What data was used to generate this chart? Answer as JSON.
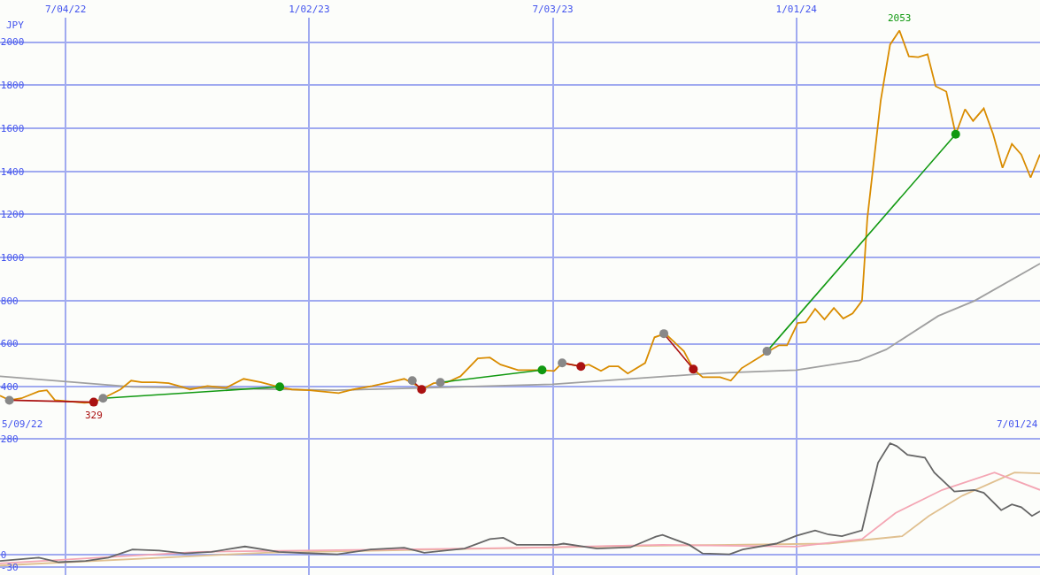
{
  "chart_data": [
    {
      "type": "line",
      "ylabel": "JPY",
      "ylim": [
        194,
        2115
      ],
      "yticks": [
        400,
        600,
        800,
        1000,
        1200,
        1400,
        1600,
        1800,
        2000
      ],
      "xlim": [
        "2022-05-16",
        "2024-07-01"
      ],
      "xticks": [
        {
          "value": "2022-07-04",
          "label": "7/04/22"
        },
        {
          "value": "2023-01-02",
          "label": "1/02/23"
        },
        {
          "value": "2023-07-03",
          "label": "7/03/23"
        },
        {
          "value": "2024-01-01",
          "label": "1/01/24"
        }
      ],
      "grid": true,
      "marker": "none",
      "line_style": "solid",
      "annotations": [
        {
          "text": "2053",
          "x": "2024-03-18",
          "y": 2053
        },
        {
          "text": "329",
          "x": "2022-07-25",
          "y": 329
        }
      ],
      "series": [
        {
          "color": "#a0a0a0",
          "x": [
            "2022-05-16",
            "2022-08-23",
            "2023-01-22",
            "2023-07-03",
            "2023-10-27",
            "2024-01-01",
            "2024-02-17",
            "2024-03-08",
            "2024-04-16",
            "2024-05-13",
            "2024-07-01"
          ],
          "values": [
            449,
            400,
            384,
            412,
            462,
            478,
            523,
            573,
            729,
            799,
            972
          ]
        },
        {
          "color": "#d98c00",
          "x": [
            "2022-05-16",
            "2022-05-23",
            "2022-06-01",
            "2022-06-14",
            "2022-06-20",
            "2022-06-26",
            "2022-07-04",
            "2022-07-18",
            "2022-07-25",
            "2022-08-01",
            "2022-08-14",
            "2022-08-22",
            "2022-08-30",
            "2022-09-09",
            "2022-09-19",
            "2022-09-29",
            "2022-10-05",
            "2022-10-18",
            "2022-11-01",
            "2022-11-14",
            "2022-11-27",
            "2022-12-10",
            "2022-12-20",
            "2023-01-02",
            "2023-01-24",
            "2023-02-04",
            "2023-02-18",
            "2023-03-03",
            "2023-03-14",
            "2023-03-23",
            "2023-03-27",
            "2023-04-05",
            "2023-04-15",
            "2023-04-25",
            "2023-05-08",
            "2023-05-17",
            "2023-05-25",
            "2023-06-07",
            "2023-06-24",
            "2023-07-04",
            "2023-07-10",
            "2023-07-24",
            "2023-07-30",
            "2023-08-08",
            "2023-08-14",
            "2023-08-21",
            "2023-08-28",
            "2023-09-10",
            "2023-09-17",
            "2023-09-25",
            "2023-10-09",
            "2023-10-16",
            "2023-10-23",
            "2023-11-05",
            "2023-11-13",
            "2023-11-21",
            "2023-12-05",
            "2023-12-11",
            "2023-12-19",
            "2023-12-25",
            "2024-01-02",
            "2024-01-08",
            "2024-01-15",
            "2024-01-22",
            "2024-01-29",
            "2024-02-05",
            "2024-02-12",
            "2024-02-19",
            "2024-02-23",
            "2024-03-04",
            "2024-03-11",
            "2024-03-18",
            "2024-03-25",
            "2024-04-01",
            "2024-04-08",
            "2024-04-14",
            "2024-04-22",
            "2024-04-29",
            "2024-05-06",
            "2024-05-12",
            "2024-05-20",
            "2024-05-27",
            "2024-06-03",
            "2024-06-10",
            "2024-06-17",
            "2024-06-24",
            "2024-07-01"
          ],
          "values": [
            359,
            338,
            347,
            379,
            384,
            338,
            334,
            326,
            329,
            347,
            388,
            429,
            421,
            421,
            417,
            400,
            388,
            404,
            396,
            437,
            421,
            400,
            388,
            384,
            371,
            388,
            404,
            421,
            437,
            408,
            388,
            417,
            421,
            449,
            532,
            536,
            503,
            478,
            478,
            474,
            511,
            495,
            503,
            474,
            495,
            495,
            462,
            511,
            630,
            647,
            565,
            482,
            445,
            445,
            429,
            486,
            540,
            565,
            593,
            593,
            696,
            700,
            762,
            713,
            766,
            717,
            741,
            799,
            1182,
            1729,
            1988,
            2053,
            1934,
            1930,
            1943,
            1795,
            1770,
            1572,
            1688,
            1634,
            1692,
            1572,
            1416,
            1527,
            1478,
            1371,
            1478
          ]
        },
        {
          "color": "#aa1111",
          "marker": "circle",
          "colors": [
            "#888888",
            "#aa1111"
          ],
          "x": [
            "2022-05-23",
            "2022-07-25"
          ],
          "values": [
            338,
            329
          ]
        },
        {
          "color": "#119911",
          "marker": "circle",
          "colors": [
            "#888888",
            "#119911"
          ],
          "x": [
            "2022-08-01",
            "2022-12-11"
          ],
          "values": [
            347,
            400
          ]
        },
        {
          "color": "#aa1111",
          "marker": "circle",
          "colors": [
            "#888888",
            "#aa1111"
          ],
          "x": [
            "2023-03-20",
            "2023-03-27"
          ],
          "values": [
            429,
            388
          ]
        },
        {
          "color": "#119911",
          "marker": "circle",
          "colors": [
            "#888888",
            "#119911"
          ],
          "x": [
            "2023-04-10",
            "2023-06-25"
          ],
          "values": [
            421,
            478
          ]
        },
        {
          "color": "#aa1111",
          "marker": "circle",
          "colors": [
            "#888888",
            "#aa1111"
          ],
          "x": [
            "2023-07-10",
            "2023-07-24"
          ],
          "values": [
            511,
            495
          ]
        },
        {
          "color": "#aa1111",
          "marker": "circle",
          "colors": [
            "#888888",
            "#aa1111"
          ],
          "x": [
            "2023-09-24",
            "2023-10-16"
          ],
          "values": [
            647,
            482
          ]
        },
        {
          "color": "#119911",
          "marker": "circle",
          "colors": [
            "#888888",
            "#119911"
          ],
          "x": [
            "2023-12-10",
            "2024-04-29"
          ],
          "values": [
            565,
            1572
          ]
        }
      ]
    },
    {
      "type": "line",
      "ylim": [
        -50,
        298
      ],
      "yticks": [
        280,
        0,
        -30
      ],
      "xlim": [
        "2022-05-16",
        "2024-07-01"
      ],
      "xticks": [
        {
          "value": "2022-07-04",
          "label": null
        },
        {
          "value": "2023-01-02",
          "label": null
        },
        {
          "value": "2023-07-03",
          "label": null
        },
        {
          "value": "2024-01-01",
          "label": null
        }
      ],
      "tick_labels": "y",
      "grid": true,
      "marker": "none",
      "line_style": "solid",
      "annotations": [
        "5/09/22",
        "7/01/24"
      ],
      "series": [
        {
          "color": "#666666",
          "x": [
            "2022-05-16",
            "2022-06-14",
            "2022-06-29",
            "2022-07-19",
            "2022-08-05",
            "2022-08-23",
            "2022-09-12",
            "2022-10-01",
            "2022-10-21",
            "2022-11-15",
            "2022-12-10",
            "2022-12-30",
            "2023-01-23",
            "2023-02-17",
            "2023-03-14",
            "2023-03-29",
            "2023-04-28",
            "2023-05-17",
            "2023-05-27",
            "2023-06-06",
            "2023-07-06",
            "2023-07-11",
            "2023-08-05",
            "2023-08-30",
            "2023-09-18",
            "2023-09-23",
            "2023-10-13",
            "2023-10-23",
            "2023-11-12",
            "2023-11-22",
            "2023-12-17",
            "2024-01-01",
            "2024-01-15",
            "2024-01-25",
            "2024-02-04",
            "2024-02-19",
            "2024-03-02",
            "2024-03-11",
            "2024-03-16",
            "2024-03-24",
            "2024-04-06",
            "2024-04-13",
            "2024-04-28",
            "2024-05-13",
            "2024-05-20",
            "2024-06-02",
            "2024-06-10",
            "2024-06-17",
            "2024-06-25",
            "2024-07-01"
          ],
          "values": [
            -16,
            -8,
            -19,
            -16,
            -8,
            12,
            9,
            2,
            6,
            19,
            6,
            3,
            0,
            12,
            16,
            4,
            14,
            37,
            40,
            23,
            23,
            26,
            14,
            17,
            43,
            47,
            23,
            2,
            0,
            12,
            26,
            45,
            58,
            48,
            44,
            58,
            222,
            269,
            262,
            241,
            234,
            198,
            152,
            156,
            149,
            107,
            121,
            114,
            93,
            104
          ]
        },
        {
          "color": "#f4a6b4",
          "x": [
            "2022-05-16",
            "2022-10-11",
            "2023-06-16",
            "2023-09-23",
            "2024-01-01",
            "2024-02-19",
            "2024-03-15",
            "2024-04-19",
            "2024-05-28",
            "2024-07-01"
          ],
          "values": [
            -22,
            6,
            16,
            23,
            19,
            37,
            100,
            156,
            198,
            156
          ]
        },
        {
          "color": "#e0c090",
          "x": [
            "2022-05-16",
            "2022-11-30",
            "2023-08-05",
            "2023-11-12",
            "2024-01-25",
            "2024-03-20",
            "2024-04-09",
            "2024-05-04",
            "2024-06-12",
            "2024-07-01"
          ],
          "values": [
            -27,
            4,
            19,
            23,
            26,
            44,
            93,
            142,
            198,
            196
          ]
        }
      ]
    }
  ]
}
